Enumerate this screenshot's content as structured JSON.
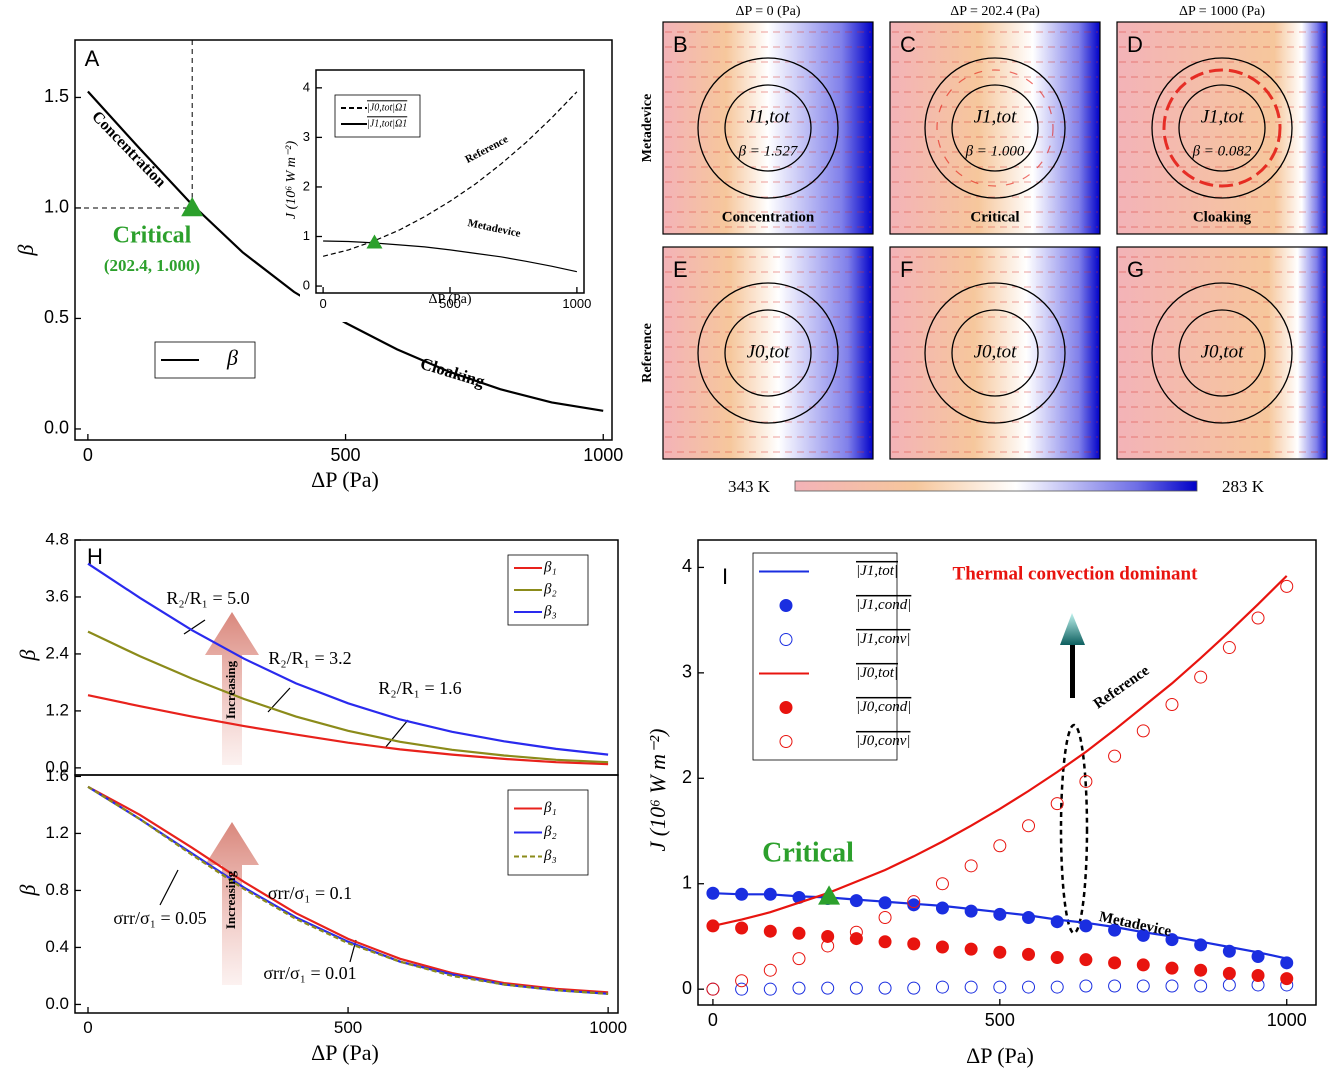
{
  "chart_data": [
    {
      "type": "line",
      "panel_label": "A",
      "xlabel": "ΔP (Pa)",
      "ylabel": "β",
      "x": [
        0,
        100,
        200,
        300,
        400,
        500,
        600,
        700,
        800,
        900,
        1000
      ],
      "series": [
        {
          "name": "β",
          "color": "#000000",
          "values": [
            1.527,
            1.27,
            1.02,
            0.8,
            0.62,
            0.48,
            0.36,
            0.26,
            0.18,
            0.12,
            0.082
          ]
        }
      ],
      "xlim": [
        -25,
        1017
      ],
      "ylim": [
        -0.05,
        1.76
      ],
      "xticks": [
        0,
        500,
        1000
      ],
      "yticks": [
        {
          "value": 0,
          "label": "0.0"
        },
        0.5,
        {
          "value": 1,
          "label": "1.0"
        },
        1.5
      ],
      "legend": "lower left",
      "critical_point": {
        "x": 202.4,
        "y": 1.0
      },
      "annotations": [
        "Concentration",
        "Cloaking",
        "Critical",
        "(202.4, 1.000)"
      ]
    },
    {
      "type": "line",
      "xlabel": "ΔP (Pa)",
      "ylabel": "J (10⁶ W m⁻²)",
      "x": [
        0,
        100,
        200,
        300,
        400,
        500,
        600,
        700,
        800,
        900,
        1000
      ],
      "series": [
        {
          "name": "|J0,tot|Ω1",
          "color": "#000000",
          "dash": true,
          "values": [
            0.6,
            0.73,
            0.91,
            1.13,
            1.4,
            1.71,
            2.06,
            2.46,
            2.9,
            3.39,
            3.92
          ]
        },
        {
          "name": "|J1,tot|Ω1",
          "color": "#000000",
          "values": [
            0.91,
            0.9,
            0.87,
            0.83,
            0.79,
            0.73,
            0.66,
            0.59,
            0.5,
            0.4,
            0.29
          ]
        }
      ],
      "xlim": [
        -28,
        1028
      ],
      "ylim": [
        -0.14,
        4.36
      ],
      "xticks": [
        0,
        500,
        1000
      ],
      "yticks": [
        0,
        1,
        2,
        3,
        4
      ],
      "legend": "upper left",
      "critical_point": {
        "x": 202.4,
        "y": 0.88
      },
      "annotations": [
        "Reference",
        "Metadevice"
      ]
    },
    {
      "type": "line",
      "panel_label": "H",
      "ylabel": "β",
      "x": [
        0,
        100,
        200,
        300,
        400,
        500,
        600,
        700,
        800,
        900,
        1000
      ],
      "series": [
        {
          "name": "β₁",
          "color": "#e8221c",
          "values": [
            1.53,
            1.3,
            1.08,
            0.88,
            0.7,
            0.53,
            0.39,
            0.28,
            0.19,
            0.12,
            0.08
          ]
        },
        {
          "name": "β₂",
          "color": "#8b8b1a",
          "values": [
            2.87,
            2.35,
            1.88,
            1.45,
            1.08,
            0.78,
            0.55,
            0.38,
            0.26,
            0.17,
            0.12
          ]
        },
        {
          "name": "β₃",
          "color": "#2a2aee",
          "values": [
            4.3,
            3.58,
            2.9,
            2.3,
            1.78,
            1.36,
            1.02,
            0.76,
            0.56,
            0.4,
            0.28
          ]
        }
      ],
      "xlim": [
        -25,
        1019
      ],
      "ylim": [
        -0.15,
        4.8
      ],
      "yticks": [
        {
          "value": 0,
          "label": "0.0"
        },
        1.2,
        2.4,
        3.6,
        4.8
      ],
      "legend": "upper right",
      "annotations": [
        "R₂/R₁ = 5.0",
        "R₂/R₁ = 3.2",
        "R₂/R₁ = 1.6",
        "Increasing"
      ]
    },
    {
      "type": "line",
      "xlabel": "ΔP (Pa)",
      "ylabel": "β",
      "x": [
        0,
        100,
        200,
        300,
        400,
        500,
        600,
        700,
        800,
        900,
        1000
      ],
      "series": [
        {
          "name": "β₁",
          "color": "#e8221c",
          "values": [
            1.527,
            1.33,
            1.1,
            0.86,
            0.64,
            0.46,
            0.32,
            0.22,
            0.15,
            0.11,
            0.085
          ]
        },
        {
          "name": "β₂",
          "color": "#2a2aee",
          "values": [
            1.527,
            1.3,
            1.06,
            0.82,
            0.61,
            0.44,
            0.3,
            0.21,
            0.14,
            0.1,
            0.075
          ]
        },
        {
          "name": "β₃",
          "color": "#8b8b1a",
          "dash": true,
          "values": [
            1.527,
            1.3,
            1.05,
            0.81,
            0.6,
            0.43,
            0.3,
            0.2,
            0.14,
            0.1,
            0.074
          ]
        }
      ],
      "xlim": [
        -25,
        1019
      ],
      "ylim": [
        -0.06,
        1.61
      ],
      "xticks": [
        0,
        500,
        1000
      ],
      "yticks": [
        {
          "value": 0,
          "label": "0.0"
        },
        0.4,
        0.8,
        1.2,
        1.6
      ],
      "legend": "upper right",
      "annotations": [
        "σrr/σ₁ = 0.05",
        "σrr/σ₁ = 0.1",
        "σrr/σ₁ = 0.01",
        "Increasing"
      ]
    },
    {
      "type": "line",
      "panel_label": "I",
      "xlabel": "ΔP (Pa)",
      "ylabel": "J (10⁶ W m⁻²)",
      "x": [
        0,
        50,
        100,
        150,
        200,
        250,
        300,
        350,
        400,
        450,
        500,
        550,
        600,
        650,
        700,
        750,
        800,
        850,
        900,
        950,
        1000
      ],
      "series": [
        {
          "name": "|J1,tot|",
          "color": "#1a2ee0",
          "values": [
            0.91,
            0.9,
            0.9,
            0.88,
            0.87,
            0.85,
            0.83,
            0.81,
            0.79,
            0.76,
            0.73,
            0.7,
            0.66,
            0.63,
            0.59,
            0.54,
            0.5,
            0.45,
            0.4,
            0.35,
            0.29
          ]
        },
        {
          "name": "|J1,cond|",
          "color": "#1a2ee0",
          "marker": "filled",
          "values": [
            0.91,
            0.9,
            0.9,
            0.87,
            0.86,
            0.84,
            0.82,
            0.8,
            0.77,
            0.74,
            0.71,
            0.68,
            0.64,
            0.6,
            0.56,
            0.51,
            0.47,
            0.42,
            0.36,
            0.31,
            0.25
          ]
        },
        {
          "name": "|J1,conv|",
          "color": "#1a2ee0",
          "marker": "open",
          "values": [
            0,
            0,
            0,
            0.01,
            0.01,
            0.01,
            0.01,
            0.01,
            0.02,
            0.02,
            0.02,
            0.02,
            0.02,
            0.03,
            0.03,
            0.03,
            0.03,
            0.03,
            0.04,
            0.04,
            0.04
          ]
        },
        {
          "name": "|J0,tot|",
          "color": "#e8140f",
          "values": [
            0.6,
            0.66,
            0.73,
            0.82,
            0.91,
            1.02,
            1.13,
            1.26,
            1.4,
            1.55,
            1.71,
            1.88,
            2.06,
            2.25,
            2.46,
            2.68,
            2.9,
            3.14,
            3.39,
            3.65,
            3.92
          ]
        },
        {
          "name": "|J0,cond|",
          "color": "#e8140f",
          "marker": "filled",
          "values": [
            0.6,
            0.58,
            0.55,
            0.53,
            0.5,
            0.48,
            0.45,
            0.43,
            0.4,
            0.38,
            0.35,
            0.33,
            0.3,
            0.28,
            0.25,
            0.23,
            0.2,
            0.18,
            0.15,
            0.13,
            0.1
          ]
        },
        {
          "name": "|J0,conv|",
          "color": "#e8140f",
          "marker": "open",
          "values": [
            0,
            0.08,
            0.18,
            0.29,
            0.41,
            0.54,
            0.68,
            0.83,
            1.0,
            1.17,
            1.36,
            1.55,
            1.76,
            1.97,
            2.21,
            2.45,
            2.7,
            2.96,
            3.24,
            3.52,
            3.82
          ]
        }
      ],
      "xlim": [
        -26,
        1051
      ],
      "ylim": [
        -0.15,
        4.26
      ],
      "xticks": [
        0,
        500,
        1000
      ],
      "yticks": [
        0,
        1,
        2,
        3,
        4
      ],
      "legend": "upper left",
      "critical_point": {
        "x": 202.4,
        "y": 0.88
      },
      "annotations": [
        "Thermal convection dominant",
        "Critical",
        "Reference",
        "Metadevice"
      ]
    }
  ],
  "field_maps": {
    "columns": [
      "ΔP = 0 (Pa)",
      "ΔP = 202.4 (Pa)",
      "ΔP = 1000 (Pa)"
    ],
    "rows": [
      "Metadevice",
      "Reference"
    ],
    "panels": [
      {
        "label": "B",
        "flux": "J1,tot",
        "beta": "β = 1.527",
        "regime": "Concentration"
      },
      {
        "label": "C",
        "flux": "J1,tot",
        "beta": "β = 1.000",
        "regime": "Critical"
      },
      {
        "label": "D",
        "flux": "J1,tot",
        "beta": "β = 0.082",
        "regime": "Cloaking"
      },
      {
        "label": "E",
        "flux": "J0,tot"
      },
      {
        "label": "F",
        "flux": "J0,tot"
      },
      {
        "label": "G",
        "flux": "J0,tot"
      }
    ],
    "colorbar": [
      "343 K",
      "283 K"
    ]
  }
}
